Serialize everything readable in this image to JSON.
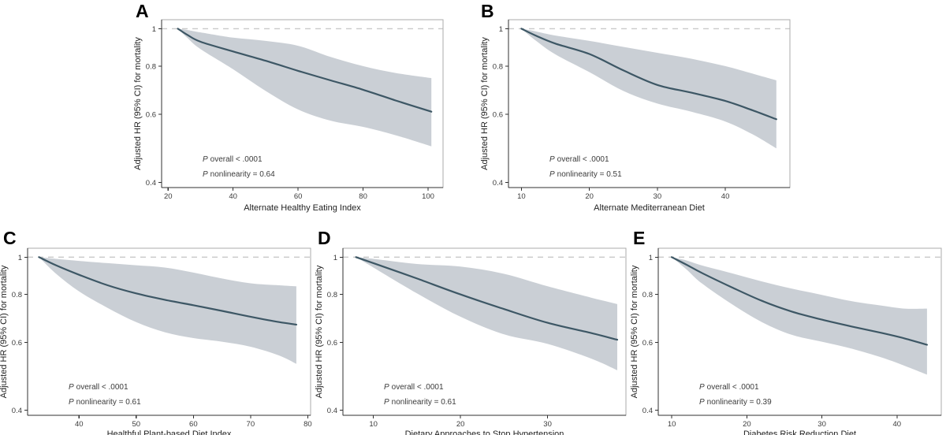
{
  "figure": {
    "background": "#ffffff",
    "description_ylabel": "Adjusted HR (95% CI) for mortality",
    "colors": {
      "curve": "#3d5765",
      "band": "#cacfd5",
      "reference_line": "#c9c9c9",
      "panel_border": "#ababab",
      "axis": "#303030",
      "text": "#3b3b3b"
    }
  },
  "chart_data": [
    {
      "type": "line",
      "panel_label": "A",
      "xlabel": "Alternate Healthy Eating Index",
      "ylabel": "Adjusted HR (95% CI) for mortality",
      "y_scale": "log",
      "y_domain": [
        0.388,
        1.055
      ],
      "y_ticks": [
        1,
        0.8,
        0.6,
        0.4
      ],
      "x_domain": [
        18,
        104.6
      ],
      "x_ticks": [
        20,
        40,
        60,
        80,
        100
      ],
      "reference_line_y": 1,
      "grid": false,
      "legend": "none",
      "annotations": [
        {
          "prefix": "P",
          "text": "overall < .0001"
        },
        {
          "prefix": "P",
          "text": "nonlinearity = 0.64"
        }
      ],
      "series": {
        "x": [
          23,
          26,
          30,
          40,
          50,
          60,
          70,
          80,
          90,
          101
        ],
        "hr": [
          1.0,
          0.963,
          0.925,
          0.873,
          0.826,
          0.778,
          0.735,
          0.695,
          0.652,
          0.61
        ],
        "ci_upper": [
          1.0,
          0.992,
          0.978,
          0.948,
          0.93,
          0.903,
          0.845,
          0.8,
          0.768,
          0.745
        ],
        "ci_lower": [
          1.0,
          0.945,
          0.885,
          0.785,
          0.69,
          0.618,
          0.578,
          0.557,
          0.53,
          0.496
        ]
      }
    },
    {
      "type": "line",
      "panel_label": "B",
      "xlabel": "Alternate Mediterranean Diet",
      "ylabel": "Adjusted HR (95% CI) for mortality",
      "y_scale": "log",
      "y_domain": [
        0.388,
        1.055
      ],
      "y_ticks": [
        1,
        0.8,
        0.6,
        0.4
      ],
      "x_domain": [
        8.1,
        49.5
      ],
      "x_ticks": [
        10,
        20,
        30,
        40
      ],
      "reference_line_y": 1,
      "grid": false,
      "legend": "none",
      "annotations": [
        {
          "prefix": "P",
          "text": "overall < .0001"
        },
        {
          "prefix": "P",
          "text": "nonlinearity = 0.51"
        }
      ],
      "series": {
        "x": [
          10,
          12,
          15,
          20,
          25,
          30,
          35,
          40,
          44,
          47.5
        ],
        "hr": [
          1.0,
          0.962,
          0.915,
          0.86,
          0.78,
          0.715,
          0.683,
          0.65,
          0.615,
          0.583
        ],
        "ci_upper": [
          1.0,
          0.985,
          0.96,
          0.93,
          0.897,
          0.866,
          0.836,
          0.8,
          0.765,
          0.735
        ],
        "ci_lower": [
          1.0,
          0.935,
          0.858,
          0.772,
          0.69,
          0.64,
          0.61,
          0.575,
          0.533,
          0.49
        ]
      }
    },
    {
      "type": "line",
      "panel_label": "C",
      "xlabel": "Healthful Plant-based Diet Index",
      "ylabel": "Adjusted HR (95% CI) for mortality",
      "y_scale": "log",
      "y_domain": [
        0.388,
        1.055
      ],
      "y_ticks": [
        1,
        0.8,
        0.6,
        0.4
      ],
      "x_domain": [
        31,
        80.5
      ],
      "x_ticks": [
        40,
        50,
        60,
        70,
        80
      ],
      "reference_line_y": 1,
      "grid": false,
      "legend": "none",
      "annotations": [
        {
          "prefix": "P",
          "text": "overall < .0001"
        },
        {
          "prefix": "P",
          "text": "nonlinearity = 0.61"
        }
      ],
      "series": {
        "x": [
          33,
          36,
          40,
          45,
          50,
          55,
          60,
          65,
          70,
          75,
          78
        ],
        "hr": [
          1.0,
          0.952,
          0.9,
          0.845,
          0.805,
          0.775,
          0.75,
          0.725,
          0.7,
          0.678,
          0.668
        ],
        "ci_upper": [
          1.0,
          0.99,
          0.978,
          0.965,
          0.953,
          0.94,
          0.912,
          0.88,
          0.855,
          0.845,
          0.84
        ],
        "ci_lower": [
          1.0,
          0.905,
          0.815,
          0.738,
          0.678,
          0.638,
          0.616,
          0.603,
          0.585,
          0.555,
          0.528
        ]
      }
    },
    {
      "type": "line",
      "panel_label": "D",
      "xlabel": "Dietary Approaches to Stop Hypertension",
      "ylabel": "Adjusted HR (95% CI) for mortality",
      "y_scale": "log",
      "y_domain": [
        0.388,
        1.055
      ],
      "y_ticks": [
        1,
        0.8,
        0.6,
        0.4
      ],
      "x_domain": [
        6.5,
        39
      ],
      "x_ticks": [
        10,
        20,
        30
      ],
      "reference_line_y": 1,
      "grid": false,
      "legend": "none",
      "annotations": [
        {
          "prefix": "P",
          "text": "overall < .0001"
        },
        {
          "prefix": "P",
          "text": "nonlinearity = 0.61"
        }
      ],
      "series": {
        "x": [
          8,
          10,
          15,
          20,
          25,
          30,
          35,
          38
        ],
        "hr": [
          1.0,
          0.965,
          0.88,
          0.8,
          0.733,
          0.675,
          0.635,
          0.61
        ],
        "ci_upper": [
          1.0,
          0.99,
          0.96,
          0.945,
          0.905,
          0.84,
          0.785,
          0.755
        ],
        "ci_lower": [
          1.0,
          0.94,
          0.805,
          0.7,
          0.63,
          0.595,
          0.545,
          0.508
        ]
      }
    },
    {
      "type": "line",
      "panel_label": "E",
      "xlabel": "Diabetes Risk Reduction Diet",
      "ylabel": "Adjusted HR (95% CI) for mortality",
      "y_scale": "log",
      "y_domain": [
        0.388,
        1.055
      ],
      "y_ticks": [
        1,
        0.8,
        0.6,
        0.4
      ],
      "x_domain": [
        8.2,
        45.9
      ],
      "x_ticks": [
        10,
        20,
        30,
        40
      ],
      "reference_line_y": 1,
      "grid": false,
      "legend": "none",
      "annotations": [
        {
          "prefix": "P",
          "text": "overall < .0001"
        },
        {
          "prefix": "P",
          "text": "nonlinearity = 0.39"
        }
      ],
      "series": {
        "x": [
          10,
          12,
          14,
          18,
          22,
          26,
          30,
          34,
          38,
          41,
          44
        ],
        "hr": [
          1.0,
          0.955,
          0.91,
          0.835,
          0.77,
          0.722,
          0.688,
          0.66,
          0.635,
          0.615,
          0.592
        ],
        "ci_upper": [
          1.0,
          0.98,
          0.952,
          0.908,
          0.865,
          0.828,
          0.798,
          0.768,
          0.748,
          0.735,
          0.735
        ],
        "ci_lower": [
          1.0,
          0.928,
          0.855,
          0.755,
          0.678,
          0.628,
          0.603,
          0.578,
          0.548,
          0.522,
          0.495
        ]
      }
    }
  ]
}
